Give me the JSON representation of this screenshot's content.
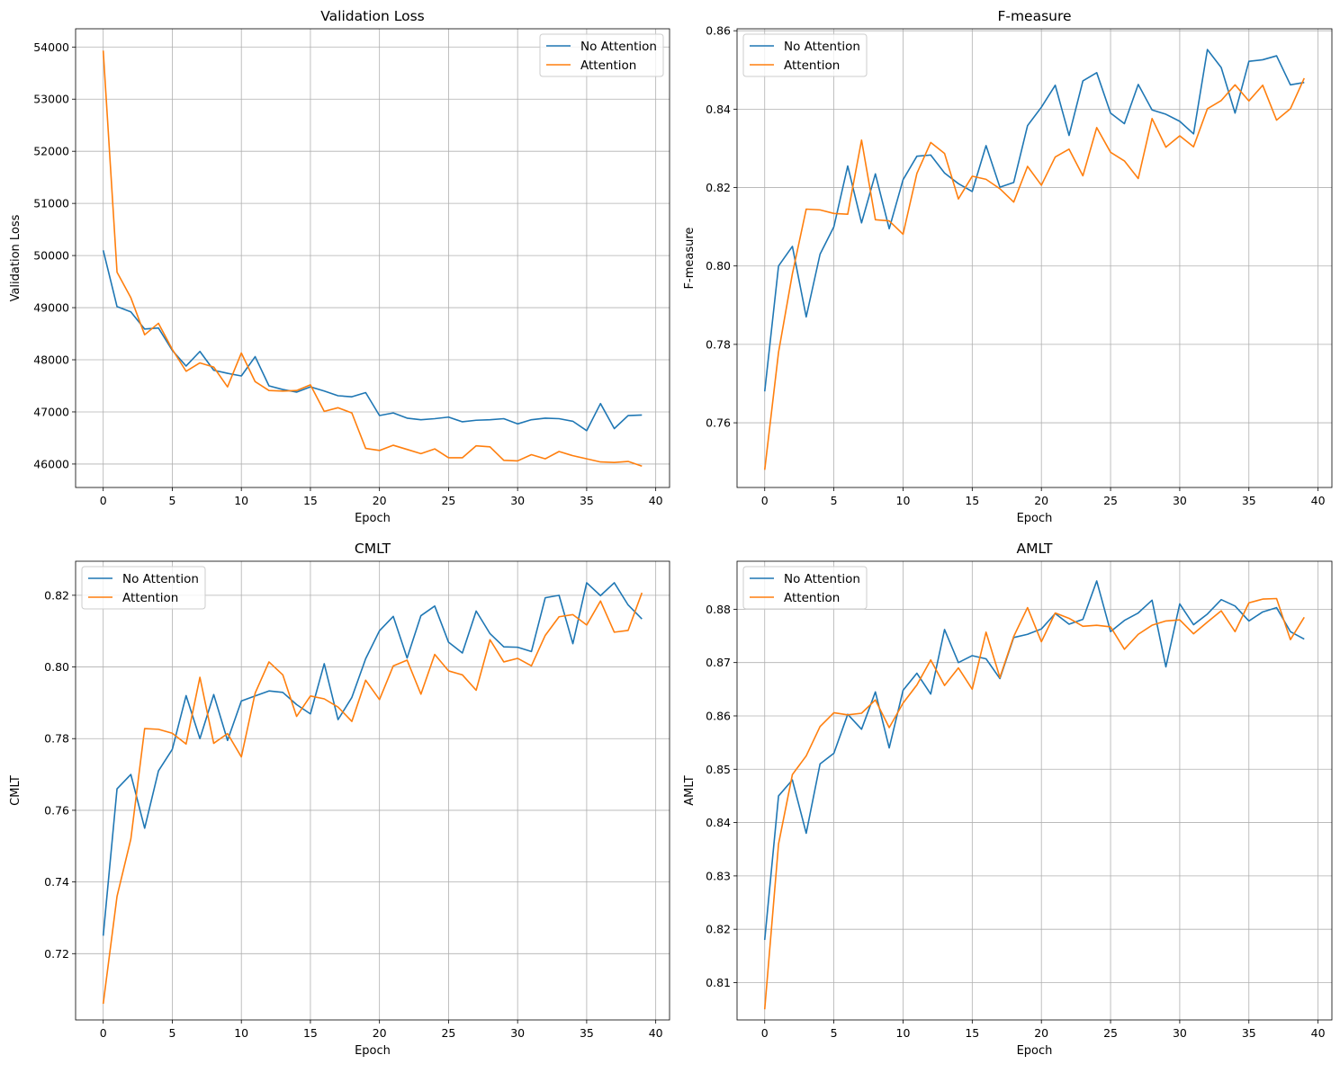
{
  "chart_data": [
    {
      "type": "line",
      "title": "Validation Loss",
      "xlabel": "Epoch",
      "ylabel": "Validation Loss",
      "xlim": [
        -2,
        41
      ],
      "ylim": [
        45550,
        54350
      ],
      "xticks": [
        0,
        5,
        10,
        15,
        20,
        25,
        30,
        35,
        40
      ],
      "yticks": [
        46000,
        47000,
        48000,
        49000,
        50000,
        51000,
        52000,
        53000,
        54000
      ],
      "tick_labels_x": [
        "0",
        "5",
        "10",
        "15",
        "20",
        "25",
        "30",
        "35",
        "40"
      ],
      "tick_labels_y": [
        "46000",
        "47000",
        "48000",
        "49000",
        "50000",
        "51000",
        "52000",
        "53000",
        "54000"
      ],
      "grid": true,
      "legend_position": "top-right",
      "x": [
        0,
        1,
        2,
        3,
        4,
        5,
        6,
        7,
        8,
        9,
        10,
        11,
        12,
        13,
        14,
        15,
        16,
        17,
        18,
        19,
        20,
        21,
        22,
        23,
        24,
        25,
        26,
        27,
        28,
        29,
        30,
        31,
        32,
        33,
        34,
        35,
        36,
        37,
        38,
        39
      ],
      "series": [
        {
          "name": "No Attention",
          "color": "#1f77b4",
          "values": [
            50100,
            49020,
            48920,
            48590,
            48610,
            48180,
            47880,
            48160,
            47800,
            47740,
            47690,
            48060,
            47500,
            47430,
            47380,
            47480,
            47400,
            47310,
            47290,
            47370,
            46930,
            46980,
            46880,
            46850,
            46870,
            46900,
            46810,
            46840,
            46850,
            46870,
            46770,
            46850,
            46880,
            46870,
            46820,
            46640,
            47160,
            46680,
            46930,
            46940
          ]
        },
        {
          "name": "Attention",
          "color": "#ff7f0e",
          "values": [
            53930,
            49680,
            49190,
            48480,
            48700,
            48200,
            47780,
            47940,
            47860,
            47480,
            48130,
            47580,
            47410,
            47400,
            47410,
            47520,
            47010,
            47080,
            46980,
            46300,
            46260,
            46360,
            46280,
            46200,
            46290,
            46120,
            46120,
            46350,
            46330,
            46070,
            46060,
            46180,
            46100,
            46240,
            46160,
            46100,
            46040,
            46030,
            46050,
            45960
          ]
        }
      ]
    },
    {
      "type": "line",
      "title": "F-measure",
      "xlabel": "Epoch",
      "ylabel": "F-measure",
      "xlim": [
        -2,
        41
      ],
      "ylim": [
        0.7435,
        0.8605
      ],
      "xticks": [
        0,
        5,
        10,
        15,
        20,
        25,
        30,
        35,
        40
      ],
      "yticks": [
        0.76,
        0.78,
        0.8,
        0.82,
        0.84,
        0.86
      ],
      "tick_labels_x": [
        "0",
        "5",
        "10",
        "15",
        "20",
        "25",
        "30",
        "35",
        "40"
      ],
      "tick_labels_y": [
        "0.76",
        "0.78",
        "0.80",
        "0.82",
        "0.84",
        "0.86"
      ],
      "grid": true,
      "legend_position": "top-left",
      "x": [
        0,
        1,
        2,
        3,
        4,
        5,
        6,
        7,
        8,
        9,
        10,
        11,
        12,
        13,
        14,
        15,
        16,
        17,
        18,
        19,
        20,
        21,
        22,
        23,
        24,
        25,
        26,
        27,
        28,
        29,
        30,
        31,
        32,
        33,
        34,
        35,
        36,
        37,
        38,
        39
      ],
      "series": [
        {
          "name": "No Attention",
          "color": "#1f77b4",
          "values": [
            0.768,
            0.8,
            0.805,
            0.787,
            0.803,
            0.81,
            0.8255,
            0.811,
            0.8235,
            0.8095,
            0.822,
            0.828,
            0.8283,
            0.8237,
            0.821,
            0.819,
            0.8307,
            0.8201,
            0.8213,
            0.8358,
            0.8405,
            0.8461,
            0.8333,
            0.8472,
            0.8493,
            0.839,
            0.8363,
            0.8463,
            0.8398,
            0.8387,
            0.8369,
            0.8337,
            0.8552,
            0.8506,
            0.839,
            0.8522,
            0.8526,
            0.8536,
            0.8462,
            0.8468
          ]
        },
        {
          "name": "Attention",
          "color": "#ff7f0e",
          "values": [
            0.748,
            0.778,
            0.798,
            0.8145,
            0.8143,
            0.8134,
            0.8132,
            0.8321,
            0.8118,
            0.8115,
            0.8081,
            0.8236,
            0.8315,
            0.8287,
            0.8171,
            0.8229,
            0.8221,
            0.8197,
            0.8163,
            0.8254,
            0.8206,
            0.8278,
            0.8298,
            0.823,
            0.8353,
            0.829,
            0.8268,
            0.8223,
            0.8376,
            0.8303,
            0.8332,
            0.8304,
            0.8401,
            0.8422,
            0.8462,
            0.8421,
            0.8461,
            0.8372,
            0.8401,
            0.8479
          ]
        }
      ]
    },
    {
      "type": "line",
      "title": "CMLT",
      "xlabel": "Epoch",
      "ylabel": "CMLT",
      "xlim": [
        -2,
        41
      ],
      "ylim": [
        0.7015,
        0.8295
      ],
      "xticks": [
        0,
        5,
        10,
        15,
        20,
        25,
        30,
        35,
        40
      ],
      "yticks": [
        0.72,
        0.74,
        0.76,
        0.78,
        0.8,
        0.82
      ],
      "tick_labels_x": [
        "0",
        "5",
        "10",
        "15",
        "20",
        "25",
        "30",
        "35",
        "40"
      ],
      "tick_labels_y": [
        "0.72",
        "0.74",
        "0.76",
        "0.78",
        "0.80",
        "0.82"
      ],
      "grid": true,
      "legend_position": "top-left",
      "x": [
        0,
        1,
        2,
        3,
        4,
        5,
        6,
        7,
        8,
        9,
        10,
        11,
        12,
        13,
        14,
        15,
        16,
        17,
        18,
        19,
        20,
        21,
        22,
        23,
        24,
        25,
        26,
        27,
        28,
        29,
        30,
        31,
        32,
        33,
        34,
        35,
        36,
        37,
        38,
        39
      ],
      "series": [
        {
          "name": "No Attention",
          "color": "#1f77b4",
          "values": [
            0.725,
            0.766,
            0.77,
            0.755,
            0.771,
            0.777,
            0.792,
            0.78,
            0.7923,
            0.7795,
            0.7905,
            0.7919,
            0.7933,
            0.7929,
            0.7895,
            0.7869,
            0.8009,
            0.7853,
            0.7915,
            0.8023,
            0.8101,
            0.8141,
            0.8025,
            0.8143,
            0.817,
            0.8069,
            0.8039,
            0.8156,
            0.8093,
            0.8056,
            0.8055,
            0.8043,
            0.8193,
            0.82,
            0.8065,
            0.8235,
            0.8199,
            0.8235,
            0.8173,
            0.8134
          ]
        },
        {
          "name": "Attention",
          "color": "#ff7f0e",
          "values": [
            0.706,
            0.736,
            0.752,
            0.7828,
            0.7826,
            0.7815,
            0.7785,
            0.7971,
            0.7787,
            0.7814,
            0.7749,
            0.7927,
            0.8014,
            0.7978,
            0.7862,
            0.7919,
            0.7911,
            0.7888,
            0.7848,
            0.7963,
            0.7909,
            0.8003,
            0.8019,
            0.7924,
            0.8035,
            0.7989,
            0.7978,
            0.7935,
            0.8076,
            0.8014,
            0.8024,
            0.8003,
            0.8088,
            0.814,
            0.8146,
            0.8117,
            0.8184,
            0.8097,
            0.8102,
            0.8207
          ]
        }
      ]
    },
    {
      "type": "line",
      "title": "AMLT",
      "xlabel": "Epoch",
      "ylabel": "AMLT",
      "xlim": [
        -2,
        41
      ],
      "ylim": [
        0.803,
        0.889
      ],
      "xticks": [
        0,
        5,
        10,
        15,
        20,
        25,
        30,
        35,
        40
      ],
      "yticks": [
        0.81,
        0.82,
        0.83,
        0.84,
        0.85,
        0.86,
        0.87,
        0.88
      ],
      "tick_labels_x": [
        "0",
        "5",
        "10",
        "15",
        "20",
        "25",
        "30",
        "35",
        "40"
      ],
      "tick_labels_y": [
        "0.81",
        "0.82",
        "0.83",
        "0.84",
        "0.85",
        "0.86",
        "0.87",
        "0.88"
      ],
      "grid": true,
      "legend_position": "top-left",
      "x": [
        0,
        1,
        2,
        3,
        4,
        5,
        6,
        7,
        8,
        9,
        10,
        11,
        12,
        13,
        14,
        15,
        16,
        17,
        18,
        19,
        20,
        21,
        22,
        23,
        24,
        25,
        26,
        27,
        28,
        29,
        30,
        31,
        32,
        33,
        34,
        35,
        36,
        37,
        38,
        39
      ],
      "series": [
        {
          "name": "No Attention",
          "color": "#1f77b4",
          "values": [
            0.818,
            0.845,
            0.848,
            0.838,
            0.851,
            0.853,
            0.8603,
            0.8575,
            0.8645,
            0.854,
            0.8648,
            0.868,
            0.8641,
            0.8762,
            0.87,
            0.8713,
            0.8707,
            0.867,
            0.8747,
            0.8753,
            0.8763,
            0.8792,
            0.8772,
            0.8781,
            0.8853,
            0.8758,
            0.8779,
            0.8793,
            0.8817,
            0.8692,
            0.881,
            0.8771,
            0.8791,
            0.8818,
            0.8806,
            0.8778,
            0.8795,
            0.8803,
            0.8758,
            0.8744
          ]
        },
        {
          "name": "Attention",
          "color": "#ff7f0e",
          "values": [
            0.805,
            0.836,
            0.849,
            0.8525,
            0.858,
            0.8606,
            0.8602,
            0.8605,
            0.863,
            0.8578,
            0.8624,
            0.8658,
            0.8705,
            0.8657,
            0.869,
            0.865,
            0.8757,
            0.8672,
            0.8749,
            0.8803,
            0.8739,
            0.8793,
            0.8783,
            0.8768,
            0.877,
            0.8767,
            0.8725,
            0.8753,
            0.877,
            0.8778,
            0.878,
            0.8754,
            0.8776,
            0.8797,
            0.8758,
            0.8812,
            0.8819,
            0.882,
            0.8743,
            0.8785
          ]
        }
      ]
    }
  ]
}
